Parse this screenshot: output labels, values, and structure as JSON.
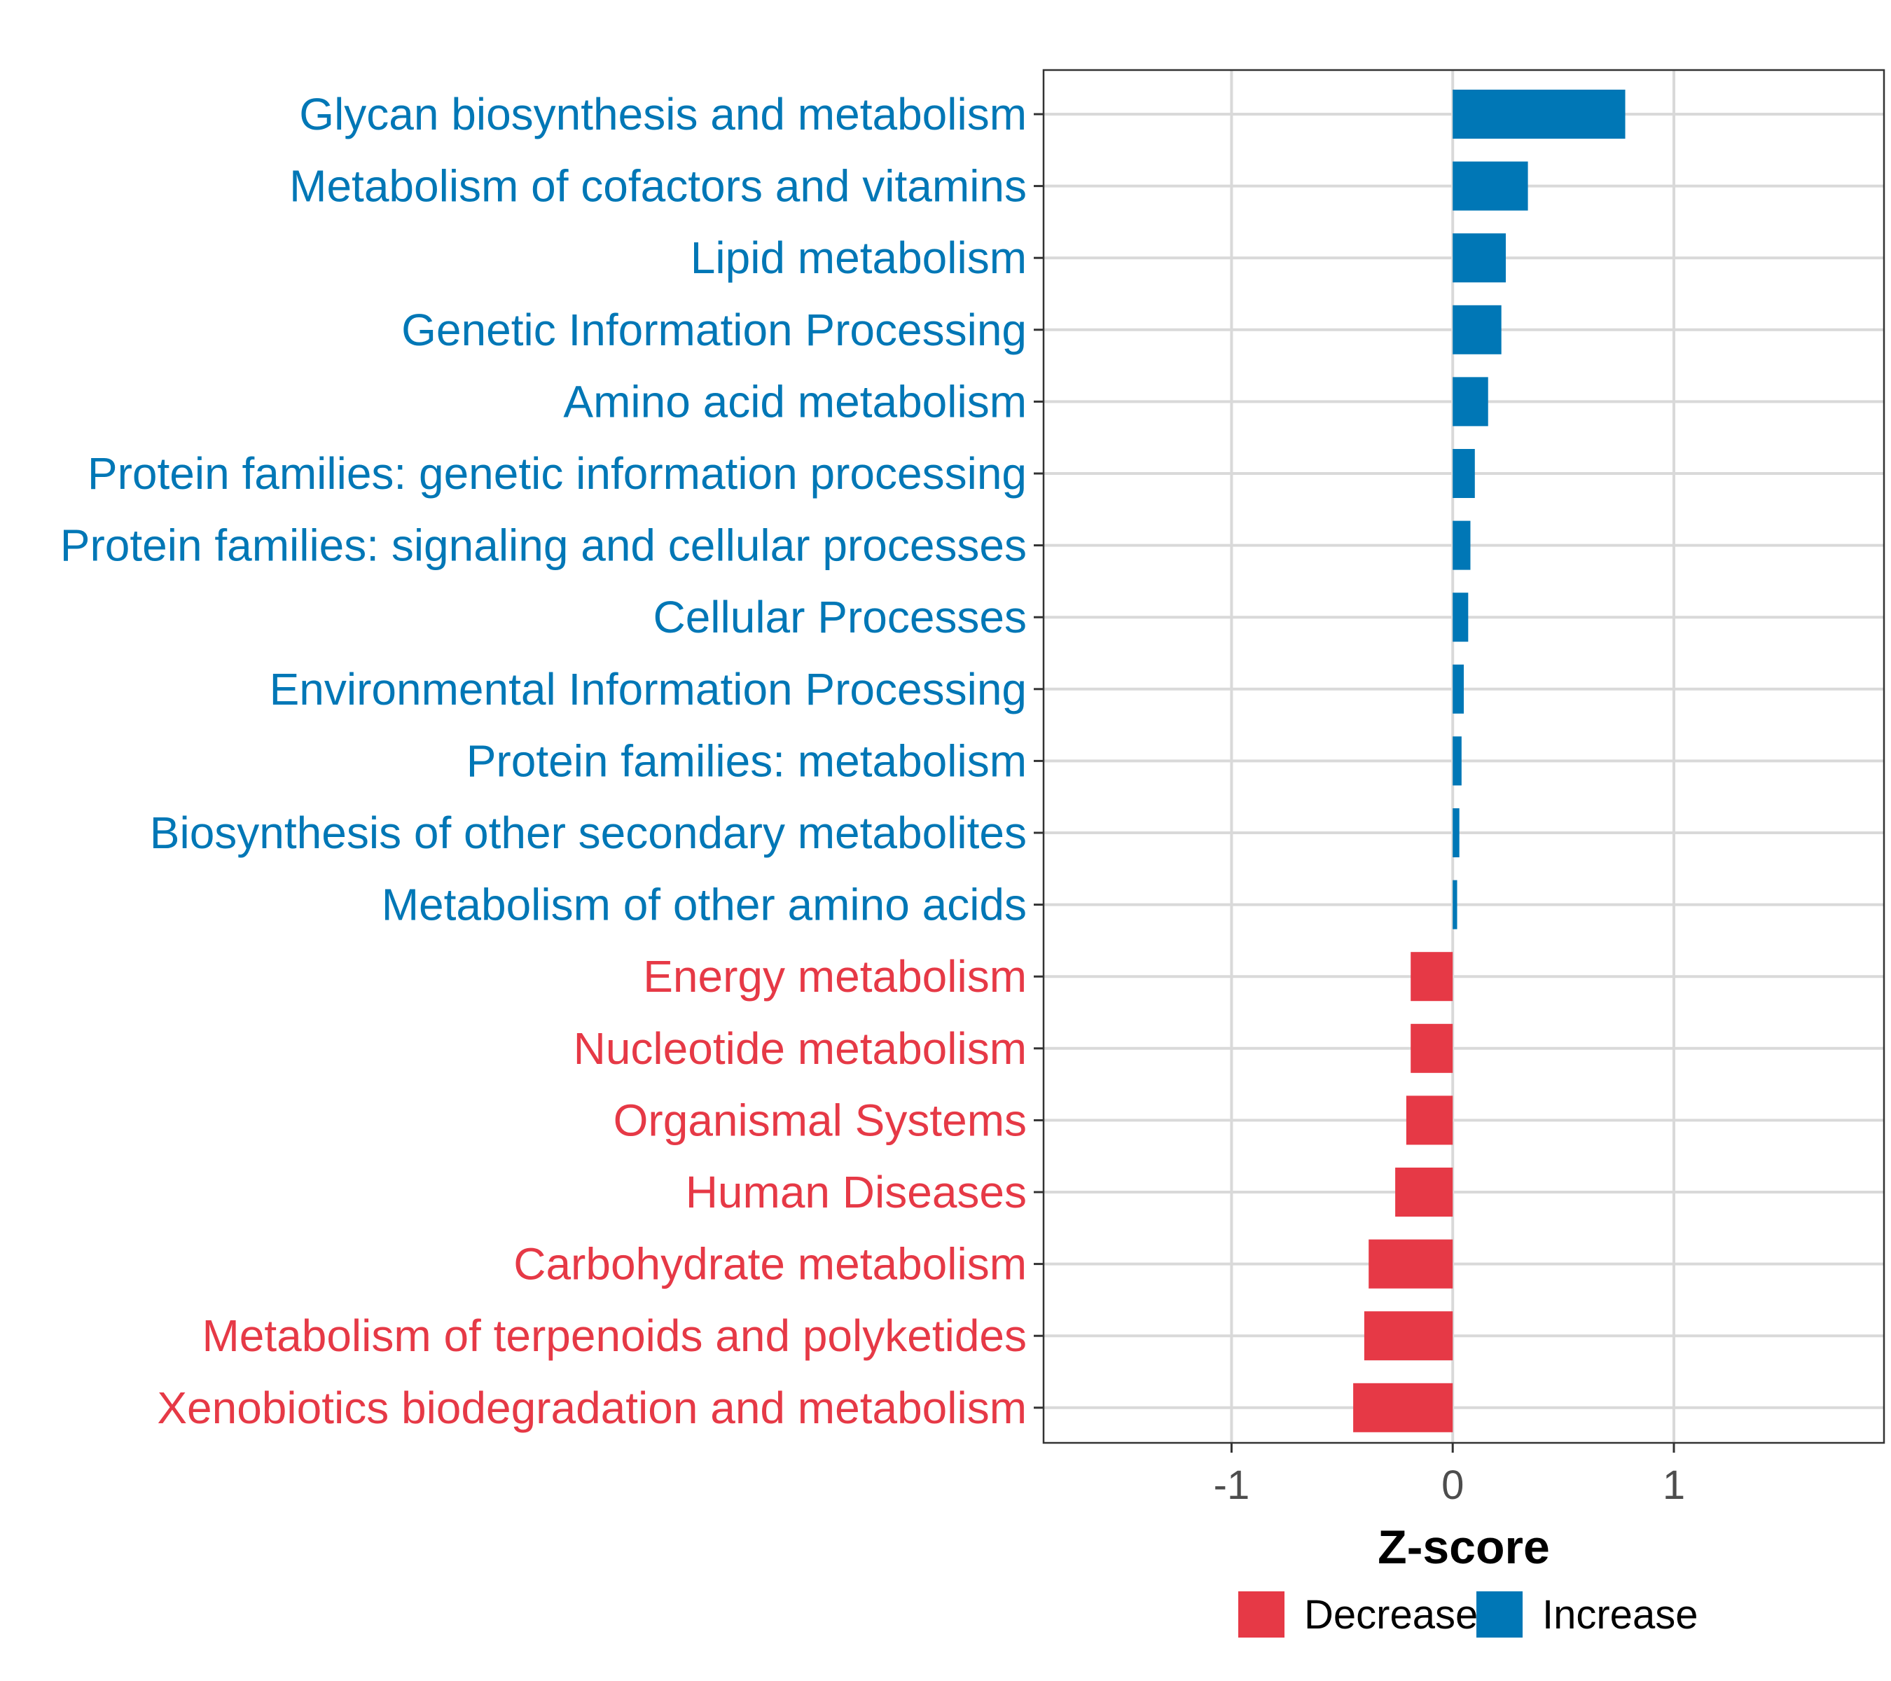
{
  "chart_data": {
    "type": "bar",
    "orientation": "horizontal",
    "title": "",
    "xlabel": "Z-score",
    "ylabel": "",
    "xlim": [
      -1.85,
      1.95
    ],
    "xticks": [
      -1,
      0,
      1
    ],
    "grid": true,
    "legend_position": "bottom",
    "colors": {
      "Decrease": "#e63946",
      "Increase": "#0077b6"
    },
    "legend": [
      {
        "name": "Decrease",
        "color": "#e63946"
      },
      {
        "name": "Increase",
        "color": "#0077b6"
      }
    ],
    "categories": [
      "Glycan biosynthesis and metabolism",
      "Metabolism of cofactors and vitamins",
      "Lipid metabolism",
      "Genetic Information Processing",
      "Amino acid metabolism",
      "Protein families: genetic information processing",
      "Protein families: signaling and cellular processes",
      "Cellular Processes",
      "Environmental Information Processing",
      "Protein families: metabolism",
      "Biosynthesis of other secondary metabolites",
      "Metabolism of other amino acids",
      "Energy metabolism",
      "Nucleotide metabolism",
      "Organismal Systems",
      "Human Diseases",
      "Carbohydrate metabolism",
      "Metabolism of terpenoids and polyketides",
      "Xenobiotics biodegradation and metabolism"
    ],
    "values": [
      0.78,
      0.34,
      0.24,
      0.22,
      0.16,
      0.1,
      0.08,
      0.07,
      0.05,
      0.04,
      0.03,
      0.02,
      -0.19,
      -0.19,
      -0.21,
      -0.26,
      -0.38,
      -0.4,
      -0.45
    ],
    "groups": [
      "Increase",
      "Increase",
      "Increase",
      "Increase",
      "Increase",
      "Increase",
      "Increase",
      "Increase",
      "Increase",
      "Increase",
      "Increase",
      "Increase",
      "Decrease",
      "Decrease",
      "Decrease",
      "Decrease",
      "Decrease",
      "Decrease",
      "Decrease"
    ]
  }
}
